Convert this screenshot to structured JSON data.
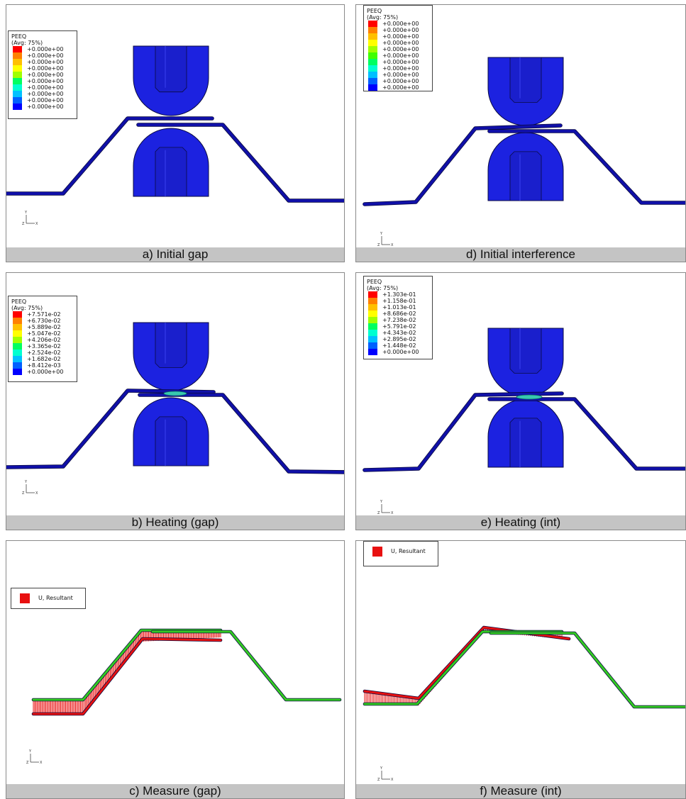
{
  "panels": [
    {
      "id": "a",
      "caption": "a) Initial gap",
      "mode": "peeq",
      "case": "gap",
      "legend": {
        "title": "PEEQ",
        "subtitle": "(Avg: 75%)",
        "values": [
          "+0.000e+00",
          "+0.000e+00",
          "+0.000e+00",
          "+0.000e+00",
          "+0.000e+00",
          "+0.000e+00",
          "+0.000e+00",
          "+0.000e+00",
          "+0.000e+00",
          "+0.000e+00"
        ]
      },
      "triad": {
        "y": "Y",
        "z": "Z",
        "x": "X"
      }
    },
    {
      "id": "d",
      "caption": "d) Initial interference",
      "mode": "peeq",
      "case": "int",
      "legend": {
        "title": "PEEQ",
        "subtitle": "(Avg: 75%)",
        "values": [
          "+0.000e+00",
          "+0.000e+00",
          "+0.000e+00",
          "+0.000e+00",
          "+0.000e+00",
          "+0.000e+00",
          "+0.000e+00",
          "+0.000e+00",
          "+0.000e+00",
          "+0.000e+00",
          "+0.000e+00"
        ]
      },
      "triad": {
        "y": "Y",
        "z": "Z",
        "x": "X"
      }
    },
    {
      "id": "b",
      "caption": "b) Heating (gap)",
      "mode": "peeq",
      "case": "gap",
      "contact": true,
      "legend": {
        "title": "PEEQ",
        "subtitle": "(Avg: 75%)",
        "values": [
          "+7.571e-02",
          "+6.730e-02",
          "+5.889e-02",
          "+5.047e-02",
          "+4.206e-02",
          "+3.365e-02",
          "+2.524e-02",
          "+1.682e-02",
          "+8.412e-03",
          "+0.000e+00"
        ]
      },
      "triad": {
        "y": "Y",
        "z": "Z",
        "x": "X"
      }
    },
    {
      "id": "e",
      "caption": "e) Heating (int)",
      "mode": "peeq",
      "case": "int",
      "contact": true,
      "legend": {
        "title": "PEEQ",
        "subtitle": "(Avg: 75%)",
        "values": [
          "+1.303e-01",
          "+1.158e-01",
          "+1.013e-01",
          "+8.686e-02",
          "+7.238e-02",
          "+5.791e-02",
          "+4.343e-02",
          "+2.895e-02",
          "+1.448e-02",
          "+0.000e+00"
        ]
      },
      "triad": {
        "y": "Y",
        "z": "Z",
        "x": "X"
      }
    },
    {
      "id": "c",
      "caption": "c) Measure (gap)",
      "mode": "disp",
      "case": "gap",
      "legend": {
        "title": "U, Resultant"
      },
      "triad": {
        "y": "Y",
        "z": "Z",
        "x": "X"
      }
    },
    {
      "id": "f",
      "caption": "f) Measure (int)",
      "mode": "disp",
      "case": "int",
      "legend": {
        "title": "U, Resultant"
      },
      "triad": {
        "y": "Y",
        "z": "Z",
        "x": "X"
      }
    }
  ],
  "colors": {
    "model_blue": "#1c22e0",
    "edge_dark": "#0a0a40",
    "strip_blue": "#1010a8",
    "deformed_green": "#33cc22",
    "arrow_red": "#e81010",
    "contact_cyan": "#38c8b0",
    "caption_gray": "#c4c4c4",
    "contour_scale": [
      "#ff0000",
      "#ff8000",
      "#ffc000",
      "#ffff00",
      "#a0ff00",
      "#40ff00",
      "#00ff60",
      "#00ffd0",
      "#00c0ff",
      "#0060ff",
      "#0000ff"
    ]
  }
}
